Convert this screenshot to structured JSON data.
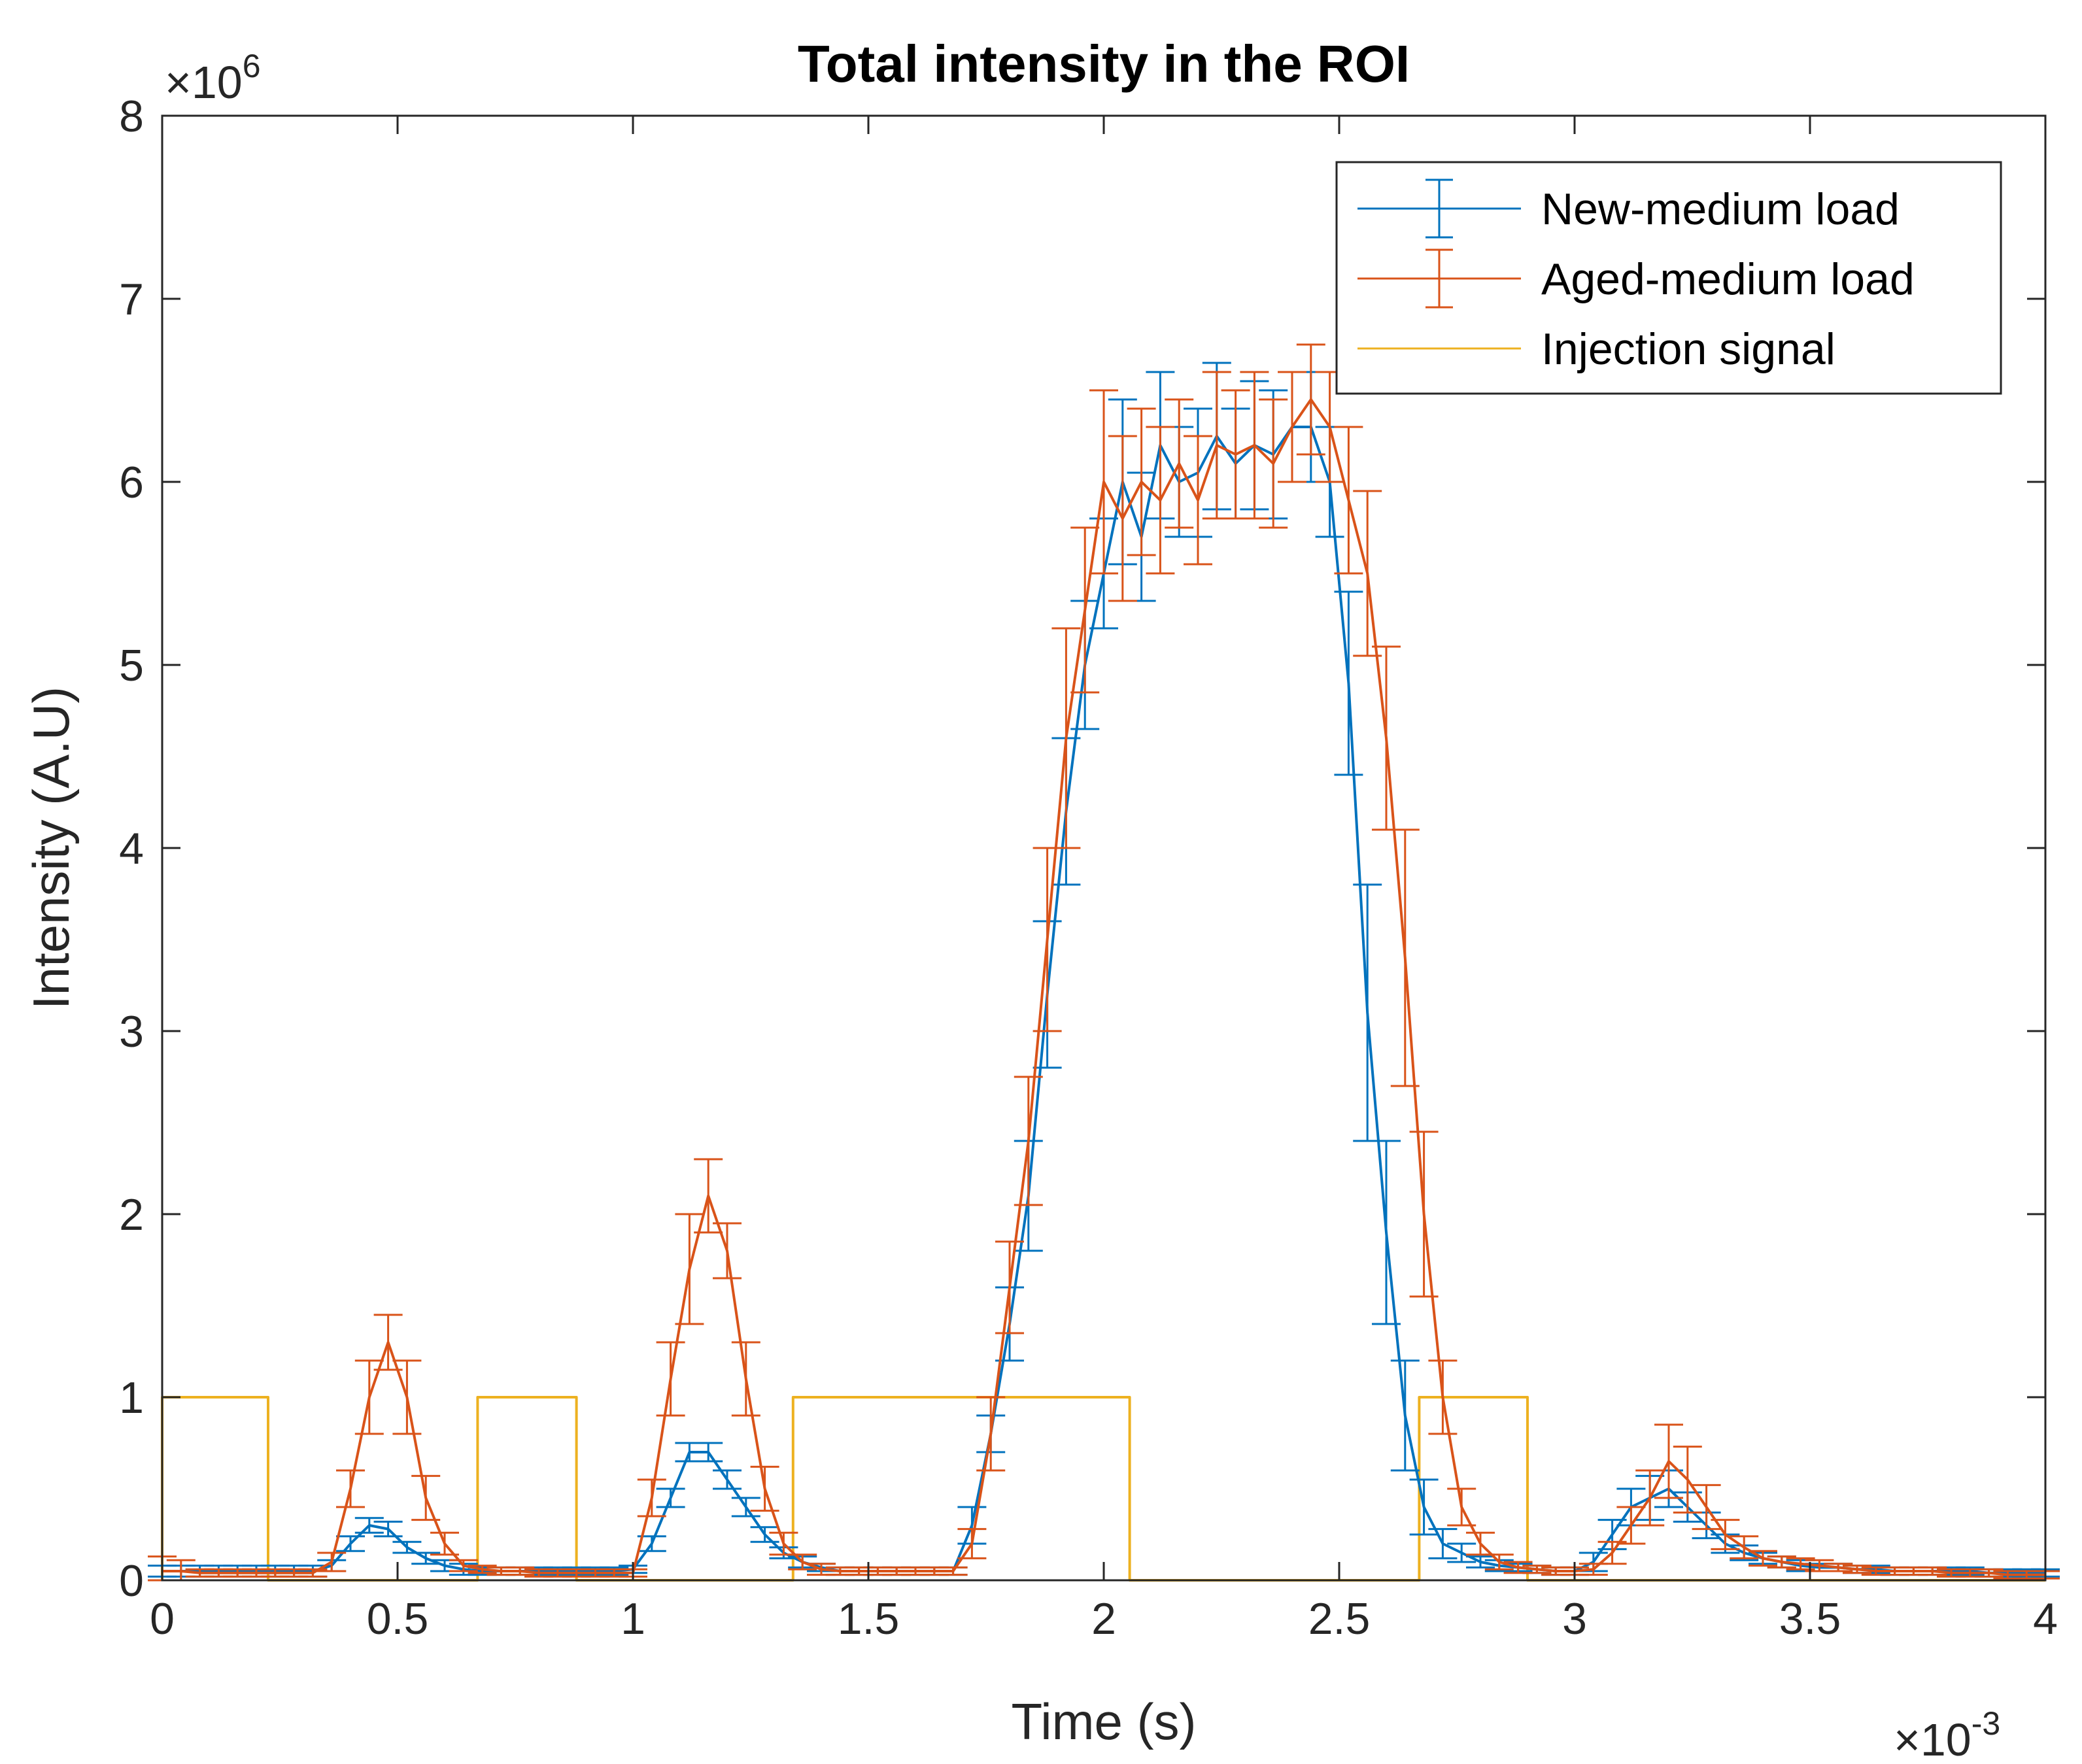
{
  "chart_data": {
    "type": "line",
    "title": "Total intensity in the ROI",
    "xlabel": "Time (s)",
    "ylabel": "Intensity (A.U)",
    "x_multiplier": "×10",
    "x_multiplier_exponent": "-3",
    "y_multiplier": "×10",
    "y_multiplier_exponent": "6",
    "xlim": [
      0,
      4
    ],
    "ylim": [
      0,
      8
    ],
    "x_ticks": [
      0,
      0.5,
      1,
      1.5,
      2,
      2.5,
      3,
      3.5,
      4
    ],
    "x_tick_labels": [
      "0",
      "0.5",
      "1",
      "1.5",
      "2",
      "2.5",
      "3",
      "3.5",
      "4"
    ],
    "y_ticks": [
      0,
      1,
      2,
      3,
      4,
      5,
      6,
      7,
      8
    ],
    "y_tick_labels": [
      "0",
      "1",
      "2",
      "3",
      "4",
      "5",
      "6",
      "7",
      "8"
    ],
    "grid": false,
    "legend_position": "top-right",
    "series": [
      {
        "name": "New-medium load",
        "color": "#0072BD",
        "error_bars": true,
        "x": [
          0,
          0.04,
          0.08,
          0.12,
          0.16,
          0.2,
          0.24,
          0.28,
          0.32,
          0.36,
          0.4,
          0.44,
          0.48,
          0.52,
          0.56,
          0.6,
          0.64,
          0.68,
          0.72,
          0.76,
          0.8,
          0.84,
          0.88,
          0.92,
          0.96,
          1.0,
          1.04,
          1.08,
          1.12,
          1.16,
          1.2,
          1.24,
          1.28,
          1.32,
          1.36,
          1.4,
          1.44,
          1.48,
          1.52,
          1.56,
          1.6,
          1.64,
          1.68,
          1.72,
          1.76,
          1.8,
          1.84,
          1.88,
          1.92,
          1.96,
          2.0,
          2.04,
          2.08,
          2.12,
          2.16,
          2.2,
          2.24,
          2.28,
          2.32,
          2.36,
          2.4,
          2.44,
          2.48,
          2.52,
          2.56,
          2.6,
          2.64,
          2.68,
          2.72,
          2.76,
          2.8,
          2.84,
          2.88,
          2.92,
          2.96,
          3.0,
          3.04,
          3.08,
          3.12,
          3.16,
          3.2,
          3.24,
          3.28,
          3.32,
          3.36,
          3.4,
          3.44,
          3.48,
          3.52,
          3.56,
          3.6,
          3.64,
          3.68,
          3.72,
          3.76,
          3.8,
          3.84,
          3.88,
          3.92,
          3.96,
          4.0
        ],
        "y": [
          0.05,
          0.05,
          0.05,
          0.05,
          0.05,
          0.05,
          0.05,
          0.05,
          0.05,
          0.08,
          0.2,
          0.3,
          0.28,
          0.18,
          0.12,
          0.08,
          0.06,
          0.05,
          0.05,
          0.05,
          0.05,
          0.05,
          0.05,
          0.05,
          0.05,
          0.06,
          0.2,
          0.45,
          0.7,
          0.7,
          0.55,
          0.4,
          0.25,
          0.15,
          0.1,
          0.07,
          0.05,
          0.05,
          0.05,
          0.05,
          0.05,
          0.05,
          0.05,
          0.3,
          0.8,
          1.4,
          2.1,
          3.2,
          4.2,
          5.0,
          5.5,
          6.0,
          5.7,
          6.2,
          6.0,
          6.05,
          6.25,
          6.1,
          6.2,
          6.15,
          6.3,
          6.3,
          6.0,
          4.9,
          3.1,
          1.9,
          0.9,
          0.4,
          0.2,
          0.15,
          0.1,
          0.08,
          0.07,
          0.06,
          0.05,
          0.05,
          0.1,
          0.25,
          0.4,
          0.45,
          0.5,
          0.4,
          0.3,
          0.2,
          0.15,
          0.12,
          0.1,
          0.08,
          0.07,
          0.07,
          0.06,
          0.06,
          0.05,
          0.05,
          0.05,
          0.05,
          0.05,
          0.04,
          0.04,
          0.04,
          0.04
        ],
        "err": [
          0.03,
          0.03,
          0.03,
          0.03,
          0.03,
          0.03,
          0.03,
          0.03,
          0.03,
          0.03,
          0.04,
          0.04,
          0.04,
          0.03,
          0.03,
          0.03,
          0.03,
          0.02,
          0.02,
          0.02,
          0.02,
          0.02,
          0.02,
          0.02,
          0.02,
          0.02,
          0.04,
          0.05,
          0.05,
          0.05,
          0.05,
          0.05,
          0.04,
          0.03,
          0.03,
          0.02,
          0.02,
          0.02,
          0.02,
          0.02,
          0.02,
          0.02,
          0.02,
          0.1,
          0.1,
          0.2,
          0.3,
          0.4,
          0.4,
          0.35,
          0.3,
          0.45,
          0.35,
          0.4,
          0.3,
          0.35,
          0.4,
          0.3,
          0.35,
          0.35,
          0.3,
          0.3,
          0.3,
          0.5,
          0.7,
          0.5,
          0.3,
          0.15,
          0.08,
          0.05,
          0.03,
          0.03,
          0.02,
          0.02,
          0.02,
          0.02,
          0.05,
          0.08,
          0.1,
          0.12,
          0.1,
          0.08,
          0.07,
          0.05,
          0.04,
          0.03,
          0.03,
          0.03,
          0.02,
          0.02,
          0.02,
          0.02,
          0.02,
          0.02,
          0.02,
          0.02,
          0.02,
          0.02,
          0.02,
          0.02,
          0.02
        ]
      },
      {
        "name": "Aged-medium load",
        "color": "#D95319",
        "error_bars": true,
        "x": [
          0,
          0.04,
          0.08,
          0.12,
          0.16,
          0.2,
          0.24,
          0.28,
          0.32,
          0.36,
          0.4,
          0.44,
          0.48,
          0.52,
          0.56,
          0.6,
          0.64,
          0.68,
          0.72,
          0.76,
          0.8,
          0.84,
          0.88,
          0.92,
          0.96,
          1.0,
          1.04,
          1.08,
          1.12,
          1.16,
          1.2,
          1.24,
          1.28,
          1.32,
          1.36,
          1.4,
          1.44,
          1.48,
          1.52,
          1.56,
          1.6,
          1.64,
          1.68,
          1.72,
          1.76,
          1.8,
          1.84,
          1.88,
          1.92,
          1.96,
          2.0,
          2.04,
          2.08,
          2.12,
          2.16,
          2.2,
          2.24,
          2.28,
          2.32,
          2.36,
          2.4,
          2.44,
          2.48,
          2.52,
          2.56,
          2.6,
          2.64,
          2.68,
          2.72,
          2.76,
          2.8,
          2.84,
          2.88,
          2.92,
          2.96,
          3.0,
          3.04,
          3.08,
          3.12,
          3.16,
          3.2,
          3.24,
          3.28,
          3.32,
          3.36,
          3.4,
          3.44,
          3.48,
          3.52,
          3.56,
          3.6,
          3.64,
          3.68,
          3.72,
          3.76,
          3.8,
          3.84,
          3.88,
          3.92,
          3.96,
          4.0
        ],
        "y": [
          0.05,
          0.05,
          0.04,
          0.04,
          0.04,
          0.04,
          0.04,
          0.04,
          0.04,
          0.1,
          0.5,
          1.0,
          1.3,
          1.0,
          0.45,
          0.2,
          0.08,
          0.06,
          0.05,
          0.05,
          0.04,
          0.04,
          0.04,
          0.04,
          0.04,
          0.04,
          0.45,
          1.1,
          1.7,
          2.1,
          1.8,
          1.1,
          0.5,
          0.2,
          0.1,
          0.06,
          0.05,
          0.05,
          0.05,
          0.05,
          0.05,
          0.05,
          0.05,
          0.2,
          0.8,
          1.6,
          2.4,
          3.5,
          4.6,
          5.3,
          6.0,
          5.8,
          6.0,
          5.9,
          6.1,
          5.9,
          6.2,
          6.15,
          6.2,
          6.1,
          6.3,
          6.45,
          6.3,
          5.9,
          5.5,
          4.6,
          3.4,
          2.0,
          1.0,
          0.4,
          0.2,
          0.1,
          0.07,
          0.06,
          0.05,
          0.05,
          0.06,
          0.15,
          0.3,
          0.45,
          0.65,
          0.55,
          0.4,
          0.25,
          0.18,
          0.12,
          0.1,
          0.09,
          0.08,
          0.07,
          0.06,
          0.05,
          0.05,
          0.05,
          0.05,
          0.04,
          0.04,
          0.04,
          0.03,
          0.03,
          0.03
        ],
        "err": [
          0.08,
          0.06,
          0.02,
          0.02,
          0.02,
          0.02,
          0.02,
          0.02,
          0.02,
          0.05,
          0.1,
          0.2,
          0.15,
          0.2,
          0.12,
          0.06,
          0.03,
          0.02,
          0.02,
          0.02,
          0.02,
          0.02,
          0.02,
          0.02,
          0.02,
          0.02,
          0.1,
          0.2,
          0.3,
          0.2,
          0.15,
          0.2,
          0.12,
          0.06,
          0.04,
          0.03,
          0.02,
          0.02,
          0.02,
          0.02,
          0.02,
          0.02,
          0.02,
          0.08,
          0.2,
          0.25,
          0.35,
          0.5,
          0.6,
          0.45,
          0.5,
          0.45,
          0.4,
          0.4,
          0.35,
          0.35,
          0.4,
          0.35,
          0.4,
          0.35,
          0.3,
          0.3,
          0.3,
          0.4,
          0.45,
          0.5,
          0.7,
          0.45,
          0.2,
          0.1,
          0.06,
          0.04,
          0.03,
          0.02,
          0.02,
          0.02,
          0.03,
          0.06,
          0.1,
          0.15,
          0.2,
          0.18,
          0.12,
          0.08,
          0.06,
          0.04,
          0.03,
          0.03,
          0.03,
          0.02,
          0.02,
          0.02,
          0.02,
          0.02,
          0.02,
          0.02,
          0.02,
          0.02,
          0.02,
          0.02,
          0.02
        ]
      },
      {
        "name": "Injection signal",
        "color": "#EDB120",
        "error_bars": false,
        "x": [
          0,
          0,
          0.225,
          0.225,
          0.67,
          0.67,
          0.88,
          0.88,
          1.34,
          1.34,
          2.055,
          2.055,
          2.67,
          2.67,
          2.9,
          2.9,
          4
        ],
        "y": [
          0,
          1,
          1,
          0,
          0,
          1,
          1,
          0,
          0,
          1,
          1,
          0,
          0,
          1,
          1,
          0,
          0
        ]
      }
    ]
  }
}
